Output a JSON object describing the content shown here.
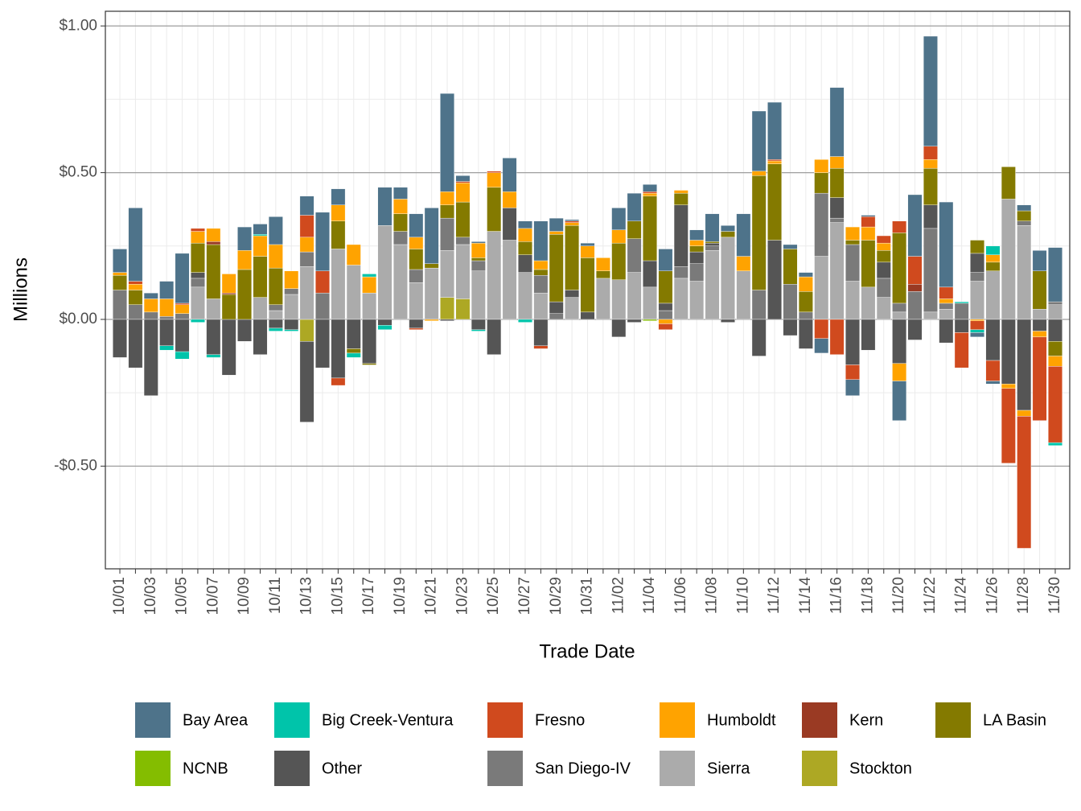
{
  "chart_data": {
    "type": "stacked_bar",
    "x_label": "Trade Date",
    "y_label": "Millions",
    "categories": [
      "10/01",
      null,
      "10/03",
      null,
      "10/05",
      null,
      "10/07",
      null,
      "10/09",
      null,
      "10/11",
      null,
      "10/13",
      null,
      "10/15",
      null,
      "10/17",
      null,
      "10/19",
      null,
      "10/21",
      null,
      "10/23",
      null,
      "10/25",
      null,
      "10/27",
      null,
      "10/29",
      null,
      "10/31",
      null,
      "11/02",
      null,
      "11/04",
      null,
      "11/06",
      null,
      "11/08",
      null,
      "11/10",
      null,
      "11/12",
      null,
      "11/14",
      null,
      "11/16",
      null,
      "11/18",
      null,
      "11/20",
      null,
      "11/22",
      null,
      "11/24",
      null,
      "11/26",
      null,
      "11/28",
      null,
      "11/30"
    ],
    "ylim": [
      -0.85,
      1.05
    ],
    "yticks": [
      {
        "value": -0.5,
        "label": "-$0.50"
      },
      {
        "value": 0,
        "label": "$0.00"
      },
      {
        "value": 0.5,
        "label": "$0.50"
      },
      {
        "value": 1.0,
        "label": "$1.00"
      }
    ],
    "grid": true,
    "legend": "bottom",
    "series": [
      {
        "name": "Bay Area",
        "color": "#4E738A",
        "values": [
          0.08,
          0.25,
          0.02,
          0.06,
          0.17,
          0,
          0,
          0,
          0.08,
          0.035,
          0.095,
          0,
          0.065,
          0.2,
          0.055,
          0,
          0,
          0.13,
          0.04,
          0.08,
          0.19,
          0.335,
          0.02,
          0.005,
          0,
          0.115,
          0.025,
          0.135,
          0.045,
          0.005,
          0.01,
          0,
          0.075,
          0.095,
          0.025,
          0.075,
          0,
          0.035,
          0.095,
          0.02,
          0.145,
          0.205,
          0.195,
          0.015,
          0.015,
          -0.05,
          0.235,
          -0.055,
          0.005,
          0,
          -0.135,
          0.21,
          0.375,
          0.29,
          0,
          -0.015,
          -0.01,
          0,
          0.02,
          0.07,
          0.185
        ]
      },
      {
        "name": "Big Creek-Ventura",
        "color": "#00C4AA",
        "values": [
          0,
          0,
          0,
          -0.015,
          -0.025,
          -0.01,
          -0.01,
          0,
          0,
          0.005,
          -0.01,
          -0.005,
          0,
          0,
          0,
          -0.015,
          0.01,
          -0.015,
          0,
          0,
          0,
          0,
          0,
          -0.005,
          0,
          0,
          -0.01,
          0,
          0,
          0,
          0,
          0,
          0,
          0,
          0,
          0,
          0,
          0,
          0,
          0,
          0,
          0,
          0,
          0,
          0,
          0,
          0,
          0,
          0,
          0,
          0,
          0,
          0,
          0,
          0.005,
          -0.01,
          0.03,
          0,
          0,
          0,
          -0.01
        ]
      },
      {
        "name": "Fresno",
        "color": "#D04A1E",
        "values": [
          0,
          0.01,
          0,
          0,
          0.005,
          0.01,
          0,
          0,
          0,
          0,
          0,
          0,
          0.075,
          0.075,
          -0.025,
          0,
          0,
          0,
          0,
          -0.005,
          0,
          0,
          0.005,
          0,
          0.005,
          0,
          0,
          -0.01,
          0,
          0.005,
          0,
          0,
          0,
          0,
          0.005,
          -0.02,
          0,
          0,
          0,
          0,
          0,
          0,
          0.005,
          0,
          0,
          -0.065,
          -0.12,
          -0.05,
          0.035,
          0.025,
          0.04,
          0.095,
          0.045,
          0.04,
          -0.12,
          -0.03,
          -0.07,
          -0.255,
          -0.45,
          -0.285,
          -0.26
        ]
      },
      {
        "name": "Humboldt",
        "color": "#FFA300",
        "values": [
          0.01,
          0.02,
          0.045,
          0.06,
          0.03,
          0.04,
          0.045,
          0.065,
          0.065,
          0.07,
          0.08,
          0.06,
          0.05,
          0,
          0.055,
          0.07,
          0.055,
          0,
          0.05,
          0.04,
          -0.005,
          0.045,
          0.065,
          0.05,
          0.05,
          0.055,
          0.045,
          0.03,
          0.01,
          0.01,
          0.04,
          0.045,
          0.045,
          0,
          0.01,
          -0.015,
          0.01,
          0.02,
          0,
          0,
          0.05,
          0.015,
          0.01,
          0,
          0.05,
          0.045,
          0.04,
          0.045,
          0.045,
          0.025,
          -0.06,
          0,
          0.03,
          0.015,
          0,
          -0.005,
          0.025,
          -0.015,
          -0.02,
          -0.02,
          -0.035
        ]
      },
      {
        "name": "Kern",
        "color": "#9A3A23",
        "values": [
          0,
          0,
          0,
          0,
          0,
          0,
          0.01,
          0.005,
          0,
          0,
          0,
          0,
          0,
          0,
          0,
          0,
          0,
          0,
          0,
          0,
          0,
          0,
          0,
          0,
          0,
          0,
          0,
          0,
          0,
          0,
          0,
          0,
          0,
          0,
          0,
          0,
          0,
          0,
          0,
          0,
          0,
          0,
          0,
          0,
          0,
          0,
          0,
          0,
          0,
          0,
          0,
          0.025,
          0,
          0,
          0,
          0,
          0,
          0,
          0,
          0,
          0
        ]
      },
      {
        "name": "LA Basin",
        "color": "#847A00",
        "values": [
          0.05,
          0.05,
          0,
          0,
          0,
          0.1,
          0.185,
          0.085,
          0.17,
          0.14,
          0.125,
          0,
          0,
          0,
          0.095,
          -0.015,
          -0.005,
          0,
          0.06,
          0.07,
          0.015,
          0.045,
          0.12,
          0.01,
          0.15,
          0,
          0.045,
          0.02,
          0.23,
          0.22,
          0.185,
          0.025,
          0.125,
          0.06,
          0.22,
          0.11,
          0.04,
          0.02,
          0.005,
          0.02,
          0,
          0.39,
          0.26,
          0.12,
          0.07,
          0.07,
          0.1,
          0.015,
          0.16,
          0.04,
          0.24,
          0,
          0.125,
          0,
          0,
          0.045,
          0.03,
          0.11,
          0.035,
          0.13,
          -0.05
        ]
      },
      {
        "name": "NCNB",
        "color": "#84BD00",
        "values": [
          0,
          0,
          0,
          0,
          0,
          0,
          0,
          0,
          0,
          0,
          0,
          0,
          0,
          0,
          0,
          0,
          0,
          0,
          0,
          0,
          0,
          0,
          0,
          0,
          0,
          0,
          0,
          0,
          0,
          0,
          0,
          0,
          0,
          0,
          -0.005,
          0,
          0,
          0,
          0,
          0,
          0,
          0,
          0,
          0,
          0,
          0,
          0,
          0,
          0,
          0,
          0,
          0,
          0,
          0,
          0,
          0,
          0,
          0,
          0,
          0,
          0
        ]
      },
      {
        "name": "Other",
        "color": "#555555",
        "values": [
          -0.13,
          -0.165,
          -0.26,
          -0.09,
          -0.11,
          0.02,
          -0.12,
          -0.19,
          -0.075,
          -0.12,
          -0.03,
          -0.035,
          -0.275,
          -0.165,
          -0.2,
          -0.1,
          -0.15,
          -0.02,
          0,
          -0.03,
          0,
          -0.005,
          0,
          -0.035,
          -0.12,
          0.11,
          0.06,
          -0.09,
          0.04,
          0.025,
          0.025,
          0,
          -0.06,
          -0.01,
          0.09,
          0.025,
          0.21,
          0.04,
          0.01,
          -0.01,
          0,
          -0.125,
          0.27,
          -0.055,
          -0.1,
          0,
          0.07,
          -0.155,
          -0.105,
          0.055,
          -0.15,
          -0.07,
          0.08,
          -0.08,
          -0.045,
          0.065,
          -0.14,
          -0.22,
          -0.31,
          -0.04,
          -0.075
        ]
      },
      {
        "name": "San Diego-IV",
        "color": "#7A7A7A",
        "values": [
          0.1,
          0.05,
          0.025,
          0.01,
          0.02,
          0.03,
          0,
          0,
          0,
          0,
          0.02,
          0.02,
          0.05,
          0.09,
          0,
          0,
          0,
          0,
          0.045,
          0.045,
          0,
          0.11,
          0.025,
          0.035,
          0,
          0,
          0,
          0.06,
          0.02,
          0,
          0,
          0,
          0,
          0.115,
          0,
          0.03,
          0.04,
          0.06,
          0.015,
          0,
          0,
          0.1,
          0,
          0.12,
          0.025,
          0.215,
          0.015,
          0.125,
          0,
          0.065,
          0.03,
          0.095,
          0.285,
          0.02,
          0.055,
          0.03,
          0,
          0,
          0.015,
          0,
          0.01
        ]
      },
      {
        "name": "Sierra",
        "color": "#ABABAB",
        "values": [
          0,
          0,
          0,
          0,
          0,
          0.11,
          0.07,
          0,
          0,
          0.075,
          0.03,
          0.085,
          0.18,
          0,
          0.24,
          0.185,
          0.09,
          0.32,
          0.255,
          0.125,
          0.175,
          0.16,
          0.185,
          0.165,
          0.3,
          0.27,
          0.16,
          0.09,
          0,
          0.075,
          0,
          0.14,
          0.135,
          0.16,
          0.11,
          0,
          0.14,
          0.13,
          0.235,
          0.28,
          0.165,
          0,
          0,
          0,
          0,
          0.215,
          0.33,
          0.13,
          0.11,
          0.075,
          0.025,
          0,
          0.025,
          0.035,
          0,
          0.13,
          0.165,
          0.41,
          0.32,
          0.035,
          0.05
        ]
      },
      {
        "name": "Stockton",
        "color": "#ADA824",
        "values": [
          0,
          0,
          0,
          0,
          0,
          0,
          0,
          0,
          0,
          0,
          0,
          0,
          -0.075,
          0,
          0,
          0,
          0,
          0,
          0,
          0,
          0,
          0.075,
          0.07,
          0,
          0,
          0,
          0,
          0,
          0,
          0,
          0,
          0,
          0,
          0,
          0,
          0,
          0,
          0,
          0,
          0,
          0,
          0,
          0,
          0,
          0,
          0,
          0,
          0,
          0,
          0,
          0,
          0,
          0,
          0,
          0,
          0,
          0,
          0,
          0,
          0,
          0
        ]
      }
    ]
  }
}
